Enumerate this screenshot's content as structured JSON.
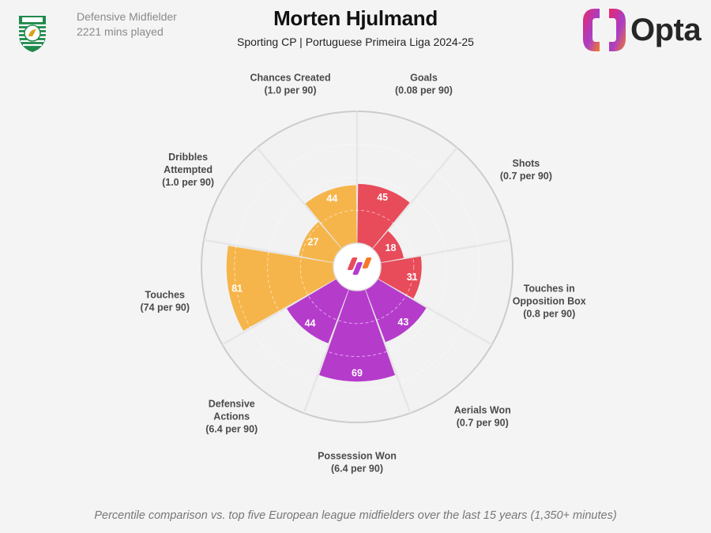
{
  "header": {
    "position": "Defensive Midfielder",
    "minutes": "2221 mins played",
    "player_name": "Morten Hjulmand",
    "subtitle": "Sporting CP | Portuguese Primeira Liga 2024-25",
    "brand": "Opta"
  },
  "footer": {
    "note": "Percentile comparison vs. top five European league midfielders over the last 15 years (1,350+ minutes)"
  },
  "colors": {
    "attacking": "#e84b5a",
    "possession": "#f6b54a",
    "defending": "#b53bcb",
    "ring": "#cccccc",
    "spoke": "#e6e6e6"
  },
  "chart_data": {
    "type": "radar-bar",
    "scale": [
      0,
      100
    ],
    "series": [
      {
        "metric": "Goals",
        "per90": "(0.08 per 90)",
        "percentile": 45,
        "group": "attacking"
      },
      {
        "metric": "Shots",
        "per90": "(0.7 per 90)",
        "percentile": 18,
        "group": "attacking"
      },
      {
        "metric": "Touches in Opposition Box",
        "per90": "(0.8 per 90)",
        "percentile": 31,
        "group": "attacking"
      },
      {
        "metric": "Aerials Won",
        "per90": "(0.7 per 90)",
        "percentile": 43,
        "group": "defending"
      },
      {
        "metric": "Possession Won",
        "per90": "(6.4 per 90)",
        "percentile": 69,
        "group": "defending"
      },
      {
        "metric": "Defensive Actions",
        "per90": "(6.4 per 90)",
        "percentile": 44,
        "group": "defending"
      },
      {
        "metric": "Touches",
        "per90": "(74 per 90)",
        "percentile": 81,
        "group": "possession"
      },
      {
        "metric": "Dribbles Attempted",
        "per90": "(1.0 per 90)",
        "percentile": 27,
        "group": "possession"
      },
      {
        "metric": "Chances Created",
        "per90": "(1.0 per 90)",
        "percentile": 44,
        "group": "possession"
      }
    ]
  }
}
